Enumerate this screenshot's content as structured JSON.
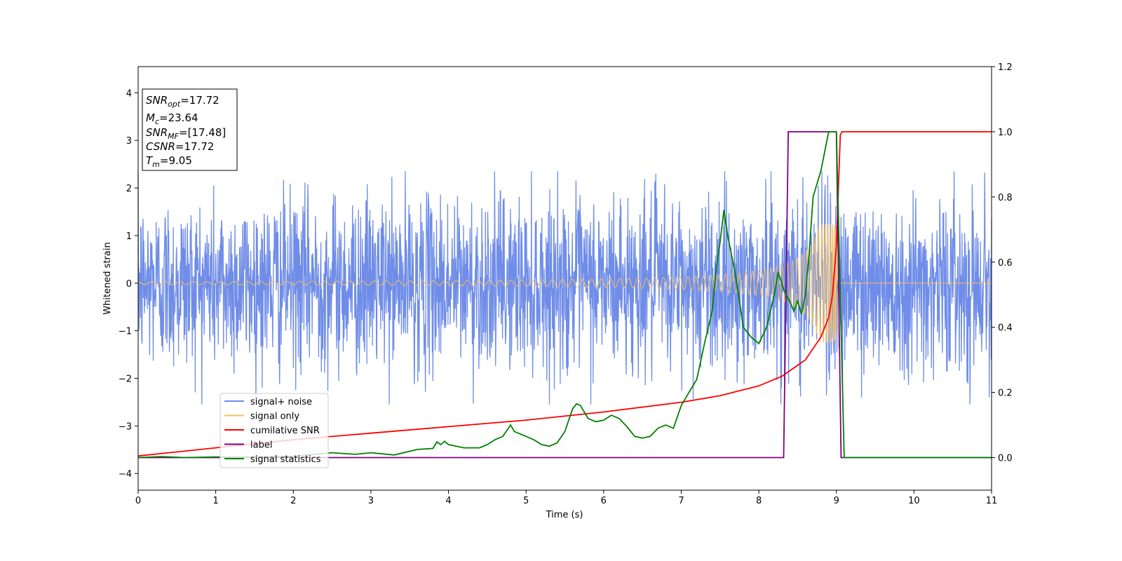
{
  "chart_data": {
    "type": "line",
    "xlabel": "Time (s)",
    "ylabel": "Whitened strain",
    "ylabel_right": "",
    "xlim": [
      0,
      11
    ],
    "ylim": [
      -4.35,
      4.55
    ],
    "ylim_right": [
      -0.1,
      1.2
    ],
    "x_ticks": [
      0,
      1,
      2,
      3,
      4,
      5,
      6,
      7,
      8,
      9,
      10,
      11
    ],
    "y_ticks": [
      -4,
      -3,
      -2,
      -1,
      0,
      1,
      2,
      3,
      4
    ],
    "y_tick_labels": [
      "−4",
      "−3",
      "−2",
      "−1",
      "0",
      "1",
      "2",
      "3",
      "4"
    ],
    "y_right_ticks": [
      0.0,
      0.2,
      0.4,
      0.6,
      0.8,
      1.0,
      1.2
    ],
    "y_right_tick_labels": [
      "0.0",
      "0.2",
      "0.4",
      "0.6",
      "0.8",
      "1.0",
      "1.2"
    ],
    "grid": false,
    "legend_position": "lower-left",
    "info_box": [
      {
        "main": "SNR",
        "sub": "opt",
        "rest": "=17.72"
      },
      {
        "main": "M",
        "sub": "c",
        "rest": "=23.64"
      },
      {
        "main": "SNR",
        "sub": "MF",
        "rest": "=[17.48]"
      },
      {
        "main": "CSNR",
        "sub": "",
        "rest": "=17.72"
      },
      {
        "main": "T",
        "sub": "m",
        "rest": "=9.05"
      }
    ],
    "series": [
      {
        "name": "signal+ noise",
        "axis": "left",
        "color": "#6f8de8",
        "noise_amplitude_std": 0.9,
        "x_range": [
          0,
          11
        ]
      },
      {
        "name": "signal only",
        "axis": "left",
        "color": "#f6bf60",
        "chirp_merger_time": 9.0,
        "chirp_peak_amplitude": 1.25,
        "chirp_start_amplitude": 0.03
      },
      {
        "name": "cumilative SNR",
        "axis": "right",
        "color": "#ff0000",
        "x": [
          0,
          1,
          2,
          3,
          4,
          5,
          6,
          7,
          7.5,
          8,
          8.3,
          8.6,
          8.8,
          8.9,
          8.95,
          9.0,
          9.03,
          9.05,
          9.07,
          11
        ],
        "y": [
          0.005,
          0.03,
          0.055,
          0.075,
          0.095,
          0.115,
          0.14,
          0.17,
          0.19,
          0.22,
          0.25,
          0.3,
          0.37,
          0.43,
          0.5,
          0.65,
          0.85,
          0.99,
          1.0,
          1.0
        ]
      },
      {
        "name": "label",
        "axis": "right",
        "color": "#800080",
        "x": [
          0,
          8.32,
          8.38,
          9.0,
          9.06,
          11
        ],
        "y": [
          0,
          0,
          1,
          1,
          0,
          0
        ]
      },
      {
        "name": "signal statistics",
        "axis": "right",
        "color": "#008000",
        "x": [
          0,
          0.3,
          0.6,
          1.0,
          1.5,
          2.0,
          2.5,
          2.8,
          3.0,
          3.3,
          3.6,
          3.8,
          3.85,
          3.9,
          3.95,
          4.0,
          4.2,
          4.4,
          4.5,
          4.6,
          4.7,
          4.8,
          4.85,
          4.9,
          5.0,
          5.1,
          5.2,
          5.3,
          5.4,
          5.5,
          5.6,
          5.65,
          5.7,
          5.75,
          5.8,
          5.9,
          6.0,
          6.1,
          6.2,
          6.3,
          6.4,
          6.5,
          6.6,
          6.7,
          6.8,
          6.9,
          7.0,
          7.1,
          7.2,
          7.3,
          7.4,
          7.45,
          7.5,
          7.55,
          7.6,
          7.7,
          7.8,
          7.9,
          8.0,
          8.1,
          8.2,
          8.25,
          8.3,
          8.35,
          8.4,
          8.45,
          8.5,
          8.55,
          8.6,
          8.65,
          8.7,
          8.8,
          8.9,
          9.0,
          9.05,
          9.1,
          9.2,
          11
        ],
        "y": [
          0.0,
          0.003,
          0.0,
          0.002,
          0.002,
          0.004,
          0.015,
          0.01,
          0.015,
          0.008,
          0.025,
          0.028,
          0.048,
          0.04,
          0.05,
          0.04,
          0.03,
          0.03,
          0.04,
          0.055,
          0.065,
          0.1,
          0.08,
          0.075,
          0.065,
          0.055,
          0.04,
          0.035,
          0.045,
          0.08,
          0.15,
          0.165,
          0.16,
          0.14,
          0.12,
          0.11,
          0.115,
          0.13,
          0.12,
          0.095,
          0.065,
          0.06,
          0.065,
          0.09,
          0.1,
          0.09,
          0.16,
          0.2,
          0.24,
          0.35,
          0.45,
          0.58,
          0.66,
          0.76,
          0.68,
          0.56,
          0.4,
          0.37,
          0.35,
          0.4,
          0.5,
          0.57,
          0.53,
          0.5,
          0.48,
          0.45,
          0.48,
          0.44,
          0.5,
          0.63,
          0.8,
          0.88,
          1.0,
          1.0,
          0.5,
          0.0,
          0.0,
          0.0
        ]
      }
    ]
  }
}
